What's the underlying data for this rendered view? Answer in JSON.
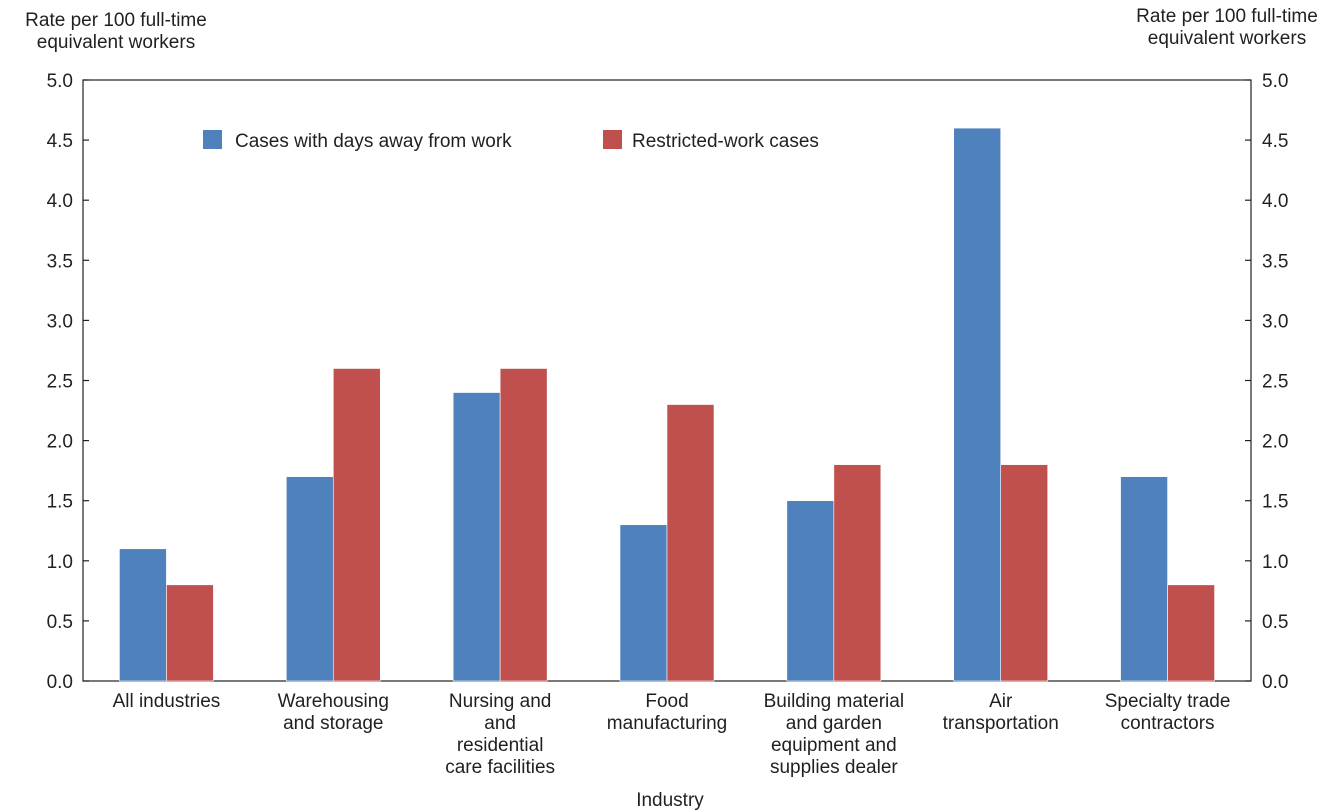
{
  "chart_data": {
    "type": "bar",
    "ylabel_left": [
      "Rate per 100 full-time",
      "equivalent workers"
    ],
    "ylabel_right": [
      "Rate per 100 full-time",
      "equivalent workers"
    ],
    "xlabel": "Industry",
    "ylim": [
      0,
      5
    ],
    "yticks": [
      "0.0",
      "0.5",
      "1.0",
      "1.5",
      "2.0",
      "2.5",
      "3.0",
      "3.5",
      "4.0",
      "4.5",
      "5.0"
    ],
    "categories": [
      [
        "All industries"
      ],
      [
        "Warehousing",
        "and storage"
      ],
      [
        "Nursing and",
        "and",
        "residential",
        "care facilities"
      ],
      [
        "Food",
        "manufacturing"
      ],
      [
        "Building material",
        "and garden",
        "equipment and",
        "supplies dealer"
      ],
      [
        "Air",
        "transportation"
      ],
      [
        "Specialty trade",
        "contractors"
      ]
    ],
    "series": [
      {
        "name": "Cases with days away from work",
        "color": "#4f81bd",
        "values": [
          1.1,
          1.7,
          2.4,
          1.3,
          1.5,
          4.6,
          1.7
        ]
      },
      {
        "name": "Restricted-work cases",
        "color": "#c0504d",
        "values": [
          0.8,
          2.6,
          2.6,
          2.3,
          1.8,
          1.8,
          0.8
        ]
      }
    ],
    "legend": "top-left",
    "grid": false
  }
}
